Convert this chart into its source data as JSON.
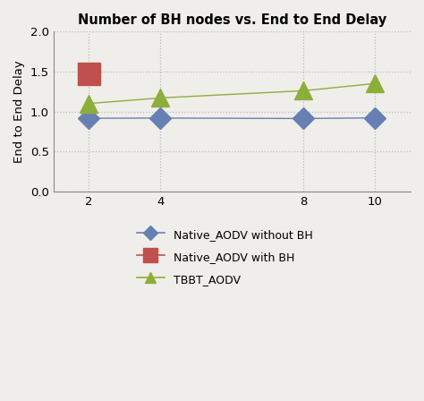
{
  "title": "Number of BH nodes vs. End to End Delay",
  "xlabel": "",
  "ylabel": "End to End Delay",
  "x_ticks": [
    2,
    4,
    8,
    10
  ],
  "xlim": [
    1,
    11
  ],
  "ylim": [
    0,
    2
  ],
  "yticks": [
    0,
    0.5,
    1,
    1.5,
    2
  ],
  "series": [
    {
      "label": "Native_AODV without BH",
      "x": [
        2,
        4,
        8,
        10
      ],
      "y": [
        0.915,
        0.918,
        0.912,
        0.92
      ],
      "color": "#6680b3",
      "marker": "D",
      "markersize": 12,
      "linewidth": 1.0
    },
    {
      "label": "Native_AODV with BH",
      "x": [
        2
      ],
      "y": [
        1.48
      ],
      "color": "#c0504d",
      "marker": "s",
      "markersize": 18,
      "linewidth": 1.0
    },
    {
      "label": "TBBT_AODV",
      "x": [
        2,
        4,
        8,
        10
      ],
      "y": [
        1.1,
        1.17,
        1.26,
        1.35
      ],
      "color": "#8dae3a",
      "marker": "^",
      "markersize": 14,
      "linewidth": 1.0
    }
  ],
  "grid_color": "#bbbbbb",
  "grid_style": "dotted",
  "background_color": "#f0eeea",
  "plot_bg_color": "#f0eeea",
  "title_fontsize": 10.5,
  "label_fontsize": 9.5,
  "tick_fontsize": 9.5,
  "legend_fontsize": 9
}
